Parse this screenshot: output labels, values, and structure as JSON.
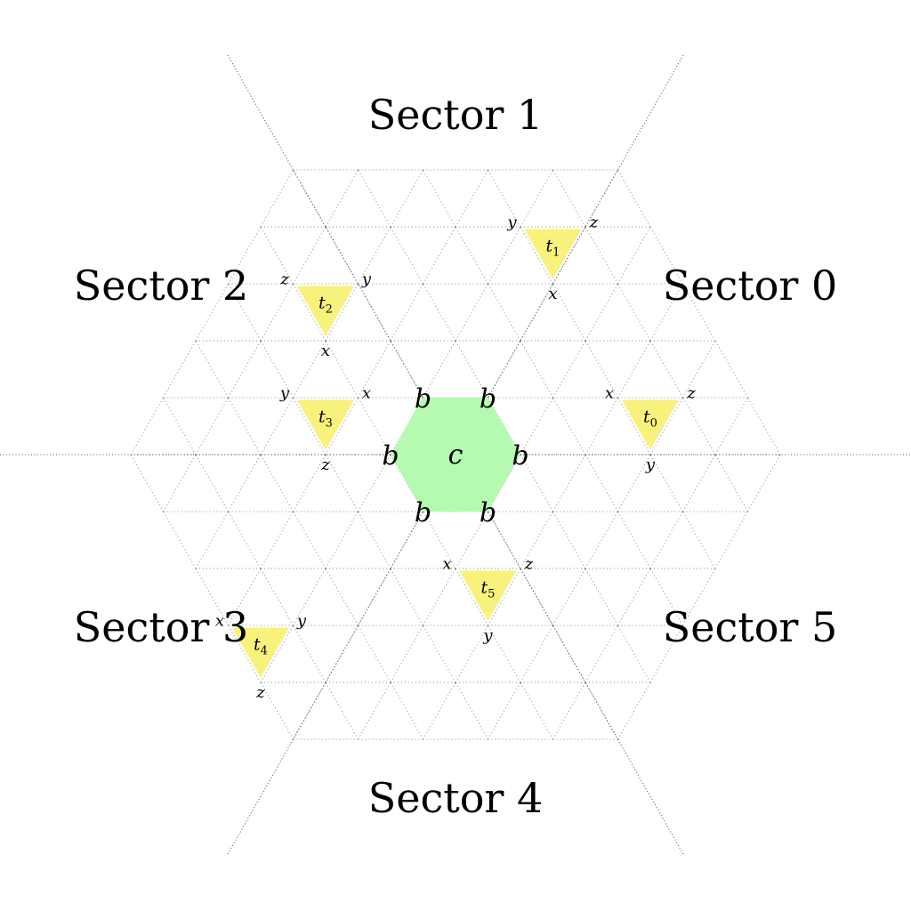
{
  "sectors": [
    {
      "id": 0,
      "label": "Sector 0"
    },
    {
      "id": 1,
      "label": "Sector 1"
    },
    {
      "id": 2,
      "label": "Sector 2"
    },
    {
      "id": 3,
      "label": "Sector 3"
    },
    {
      "id": 4,
      "label": "Sector 4"
    },
    {
      "id": 5,
      "label": "Sector 5"
    }
  ],
  "center_hexagon": {
    "center_label": "c",
    "vertex_label": "b",
    "color": "#b4fab0"
  },
  "triangles": [
    {
      "name": "t",
      "index": "0",
      "vertices": [
        "z",
        "x",
        "y"
      ]
    },
    {
      "name": "t",
      "index": "1",
      "vertices": [
        "z",
        "y",
        "x"
      ]
    },
    {
      "name": "t",
      "index": "2",
      "vertices": [
        "y",
        "z",
        "x"
      ]
    },
    {
      "name": "t",
      "index": "3",
      "vertices": [
        "y",
        "x",
        "z"
      ]
    },
    {
      "name": "t",
      "index": "4",
      "vertices": [
        "x",
        "y",
        "z"
      ]
    },
    {
      "name": "t",
      "index": "5",
      "vertices": [
        "x",
        "z",
        "y"
      ]
    }
  ],
  "colors": {
    "triangle_fill": "#f8f27c",
    "hexagon_fill": "#b4fab0",
    "grid": "#8a8a8a"
  }
}
